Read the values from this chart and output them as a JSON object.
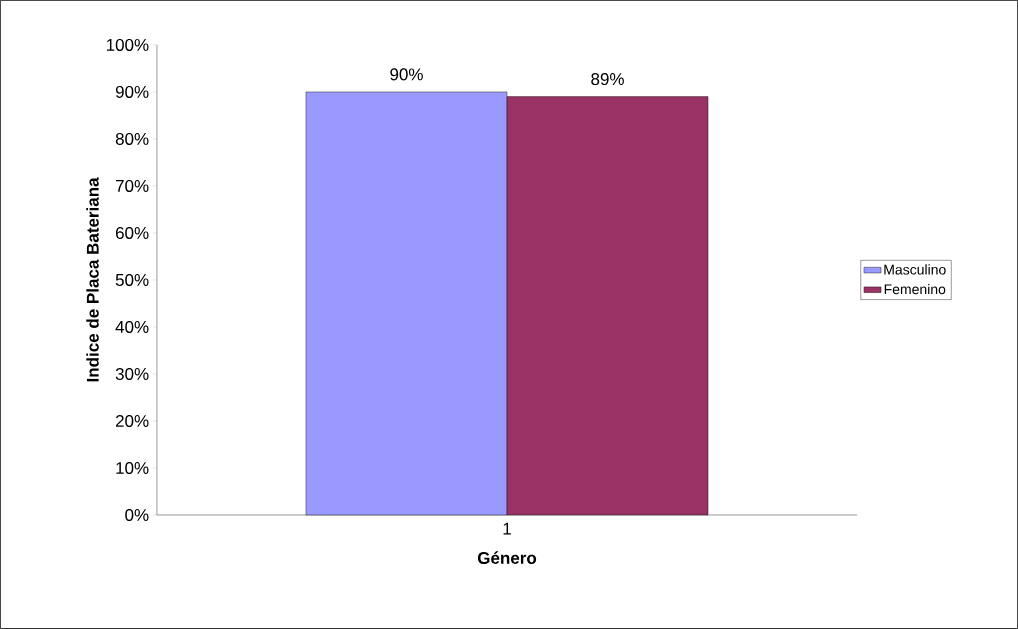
{
  "chart_data": {
    "type": "bar",
    "xlabel": "Género",
    "ylabel": "Indice de Placa Bateriana",
    "categories": [
      "1"
    ],
    "series": [
      {
        "name": "Masculino",
        "color": "#9999ff",
        "values": [
          90
        ],
        "value_labels": [
          "90%"
        ]
      },
      {
        "name": "Femenino",
        "color": "#993366",
        "values": [
          89
        ],
        "value_labels": [
          "89%"
        ]
      }
    ],
    "ylim": [
      0,
      100
    ],
    "yticks": [
      {
        "value": 0,
        "label": "0%"
      },
      {
        "value": 10,
        "label": "10%"
      },
      {
        "value": 20,
        "label": "20%"
      },
      {
        "value": 30,
        "label": "30%"
      },
      {
        "value": 40,
        "label": "40%"
      },
      {
        "value": 50,
        "label": "50%"
      },
      {
        "value": 60,
        "label": "60%"
      },
      {
        "value": 70,
        "label": "70%"
      },
      {
        "value": 80,
        "label": "80%"
      },
      {
        "value": 90,
        "label": "90%"
      },
      {
        "value": 100,
        "label": "100%"
      }
    ],
    "grid": false,
    "legend": "right"
  }
}
